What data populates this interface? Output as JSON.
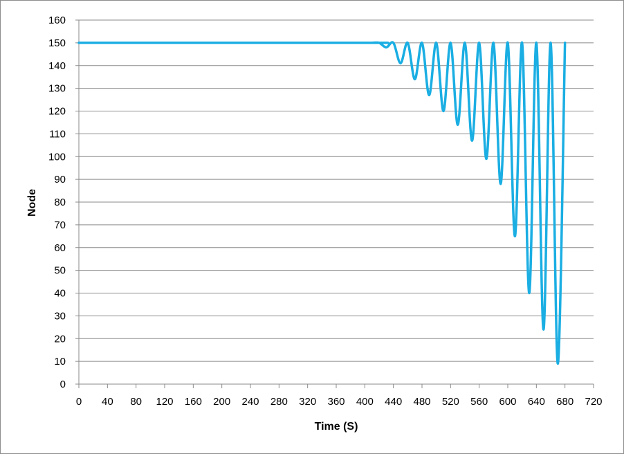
{
  "chart_data": {
    "type": "line",
    "title": "",
    "xlabel": "Time (S)",
    "ylabel": "Node",
    "xlim": [
      0,
      720
    ],
    "ylim": [
      0,
      160
    ],
    "x_ticks": [
      0,
      40,
      80,
      120,
      160,
      200,
      240,
      280,
      320,
      360,
      400,
      440,
      480,
      520,
      560,
      600,
      640,
      680,
      720
    ],
    "y_ticks": [
      0,
      10,
      20,
      30,
      40,
      50,
      60,
      70,
      80,
      90,
      100,
      110,
      120,
      130,
      140,
      150,
      160
    ],
    "grid": "horizontal",
    "legend": "none",
    "series_color": "#1aaee3",
    "series": [
      {
        "x": [
          0,
          400,
          410,
          420,
          430,
          440,
          450,
          460,
          470,
          480,
          490,
          500,
          510,
          520,
          530,
          540,
          550,
          560,
          570,
          580,
          590,
          600,
          610,
          620,
          630,
          640,
          650,
          660,
          670,
          680
        ],
        "y": [
          150,
          150,
          150,
          150,
          148,
          150,
          141,
          150,
          134,
          150,
          127,
          150,
          120,
          150,
          114,
          150,
          107,
          150,
          99,
          150,
          88,
          150,
          65,
          150,
          40,
          150,
          24,
          150,
          9,
          150
        ]
      }
    ]
  }
}
